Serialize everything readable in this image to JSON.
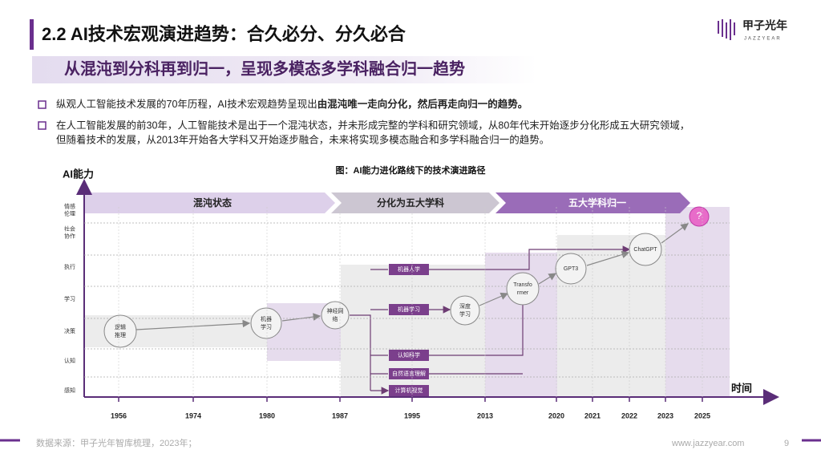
{
  "header": {
    "title": "2.2 AI技术宏观演进趋势：合久必分、分久必合",
    "subtitle": "从混沌到分科再到归一，呈现多模态多学科融合归一趋势"
  },
  "logo": {
    "name": "甲子光年",
    "latin": "JAZZYEAR"
  },
  "bullets": [
    {
      "text": "纵观人工智能技术发展的70年历程，AI技术宏观趋势呈现出",
      "bold": "由混沌唯一走向分化，然后再走向归一的趋势。"
    },
    {
      "lines": [
        "在人工智能发展的前30年，人工智能技术是出于一个混沌状态，并未形成完整的学科和研究领域，从80年代末开始逐步分化形成五大研究领域，",
        "但随着技术的发展，从2013年开始各大学科又开始逐步融合，未来将实现多模态融合和多学科融合归一的趋势。"
      ]
    }
  ],
  "figure": {
    "title": "图：AI能力进化路线下的技术演进路径",
    "y_axis_label": "AI能力",
    "x_axis_label": "时间",
    "y_levels": [
      [
        "情感",
        "伦理"
      ],
      [
        "社会",
        "协作"
      ],
      [
        "执行"
      ],
      [
        "学习"
      ],
      [
        "决策"
      ],
      [
        "认知"
      ],
      [
        "感知"
      ]
    ],
    "phases": [
      "混沌状态",
      "分化为五大学科",
      "五大学科归一"
    ],
    "nodes": [
      {
        "lines": [
          "逻辑",
          "推理"
        ]
      },
      {
        "lines": [
          "机器",
          "学习"
        ]
      },
      {
        "lines": [
          "神经网",
          "络"
        ]
      },
      {
        "lines": [
          "深度",
          "学习"
        ]
      },
      {
        "lines": [
          "Transfo",
          "rmer"
        ]
      },
      {
        "lines": [
          "GPT3"
        ]
      },
      {
        "lines": [
          "ChatGPT"
        ]
      },
      {
        "lines": [
          "?"
        ]
      }
    ],
    "fields": [
      "机器人学",
      "机器学习",
      "认知科学",
      "自然语言理解",
      "计算机视觉"
    ],
    "years": [
      "1956",
      "1974",
      "1980",
      "1987",
      "1995",
      "2013",
      "2020",
      "2021",
      "2022",
      "2023",
      "2025"
    ]
  },
  "footer": {
    "source": "数据来源：甲子光年智库梳理，2023年；",
    "url": "www.jazzyear.com",
    "page": "9"
  }
}
